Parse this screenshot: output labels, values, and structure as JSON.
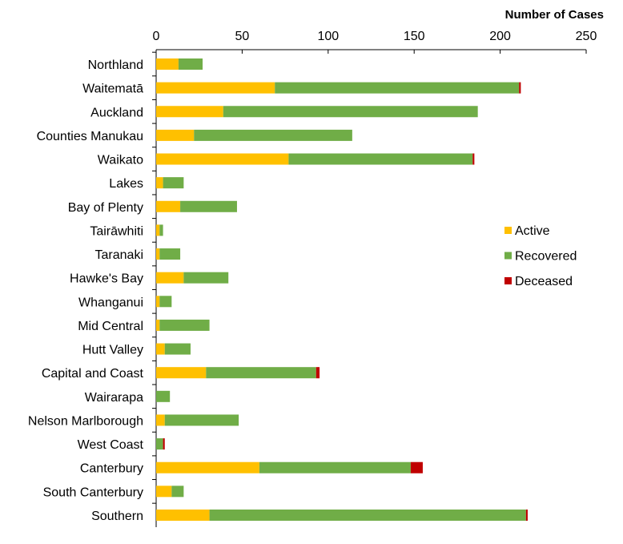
{
  "chart_data": {
    "type": "bar",
    "orientation": "horizontal",
    "stacked": true,
    "title": "",
    "xlabel": "Number of Cases",
    "ylabel": "",
    "xlim": [
      0,
      250
    ],
    "xticks": [
      0,
      50,
      100,
      150,
      200,
      250
    ],
    "grid": false,
    "legend_position": "right",
    "categories": [
      "Northland",
      "Waitematā",
      "Auckland",
      "Counties Manukau",
      "Waikato",
      "Lakes",
      "Bay of Plenty",
      "Tairāwhiti",
      "Taranaki",
      "Hawke's Bay",
      "Whanganui",
      "Mid Central",
      "Hutt Valley",
      "Capital and Coast",
      "Wairarapa",
      "Nelson Marlborough",
      "West Coast",
      "Canterbury",
      "South Canterbury",
      "Southern"
    ],
    "series": [
      {
        "name": "Active",
        "color": "#FFC000",
        "values": [
          13,
          69,
          39,
          22,
          77,
          4,
          14,
          2,
          2,
          16,
          2,
          2,
          5,
          29,
          0,
          5,
          0,
          60,
          9,
          31
        ]
      },
      {
        "name": "Recovered",
        "color": "#70AD47",
        "values": [
          14,
          142,
          148,
          92,
          107,
          12,
          33,
          2,
          12,
          26,
          7,
          29,
          15,
          64,
          8,
          43,
          4,
          88,
          7,
          184
        ]
      },
      {
        "name": "Deceased",
        "color": "#C00000",
        "values": [
          0,
          1,
          0,
          0,
          1,
          0,
          0,
          0,
          0,
          0,
          0,
          0,
          0,
          2,
          0,
          0,
          1,
          7,
          0,
          1
        ]
      }
    ]
  }
}
